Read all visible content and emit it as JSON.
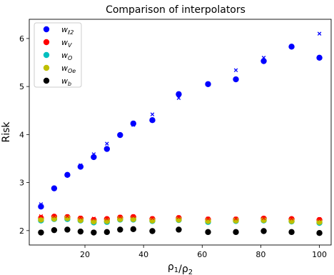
{
  "chart_data": {
    "type": "scatter",
    "title": "Comparison of interpolators",
    "xlabel": "ρ1/ρ2",
    "ylabel": "Risk",
    "xlim": [
      1,
      104
    ],
    "ylim": [
      1.7,
      6.4
    ],
    "xticks": [
      20,
      40,
      60,
      80,
      100
    ],
    "yticks": [
      2,
      3,
      4,
      5,
      6
    ],
    "grid": false,
    "legend_position": "top-left",
    "x": [
      5,
      9.5,
      14,
      18.5,
      23,
      27.5,
      32,
      36.5,
      43,
      52,
      62,
      71.5,
      81,
      90.5,
      100
    ],
    "series": [
      {
        "name": "wℓ2",
        "color": "#0000ff",
        "marker": "circle",
        "values": [
          2.5,
          2.88,
          3.16,
          3.33,
          3.53,
          3.7,
          3.99,
          4.23,
          4.3,
          4.84,
          5.05,
          5.15,
          5.53,
          5.83,
          5.6
        ]
      },
      {
        "name": "wV",
        "color": "#ff0000",
        "marker": "circle",
        "values": [
          2.26,
          2.29,
          2.28,
          2.25,
          2.22,
          2.24,
          2.27,
          2.28,
          2.24,
          2.26,
          2.23,
          2.23,
          2.25,
          2.24,
          2.22
        ]
      },
      {
        "name": "wO",
        "color": "#00bfbf",
        "marker": "circle",
        "values": [
          2.21,
          2.24,
          2.24,
          2.21,
          2.17,
          2.18,
          2.23,
          2.23,
          2.2,
          2.22,
          2.18,
          2.2,
          2.21,
          2.19,
          2.16
        ]
      },
      {
        "name": "wOe",
        "color": "#bfbf00",
        "marker": "circle",
        "values": [
          2.23,
          2.25,
          2.26,
          2.22,
          2.19,
          2.2,
          2.24,
          2.24,
          2.21,
          2.23,
          2.2,
          2.21,
          2.22,
          2.2,
          2.18
        ]
      },
      {
        "name": "wb",
        "color": "#000000",
        "marker": "circle",
        "values": [
          1.96,
          2.01,
          2.02,
          1.98,
          1.96,
          1.97,
          2.02,
          2.03,
          1.99,
          2.02,
          1.97,
          1.97,
          1.99,
          1.97,
          1.95
        ]
      },
      {
        "name": "",
        "color": "#0000ff",
        "marker": "x",
        "values": [
          2.55,
          2.88,
          3.16,
          3.36,
          3.59,
          3.81,
          3.99,
          4.2,
          4.42,
          4.76,
          5.05,
          5.34,
          5.6,
          5.83,
          6.1
        ]
      },
      {
        "name": "",
        "color": "#ff0000",
        "marker": "x",
        "values": [
          2.3,
          2.3,
          2.3,
          2.27,
          2.25,
          2.25,
          2.29,
          2.3,
          2.26,
          2.28,
          2.25,
          2.25,
          2.26,
          2.25,
          2.24
        ]
      }
    ],
    "legend": [
      {
        "base": "w",
        "sub": "ℓ2",
        "color": "#0000ff"
      },
      {
        "base": "w",
        "sub": "V",
        "color": "#ff0000"
      },
      {
        "base": "w",
        "sub": "O",
        "color": "#00bfbf"
      },
      {
        "base": "w",
        "sub": "Oe",
        "color": "#bfbf00"
      },
      {
        "base": "w",
        "sub": "b",
        "color": "#000000"
      }
    ]
  }
}
